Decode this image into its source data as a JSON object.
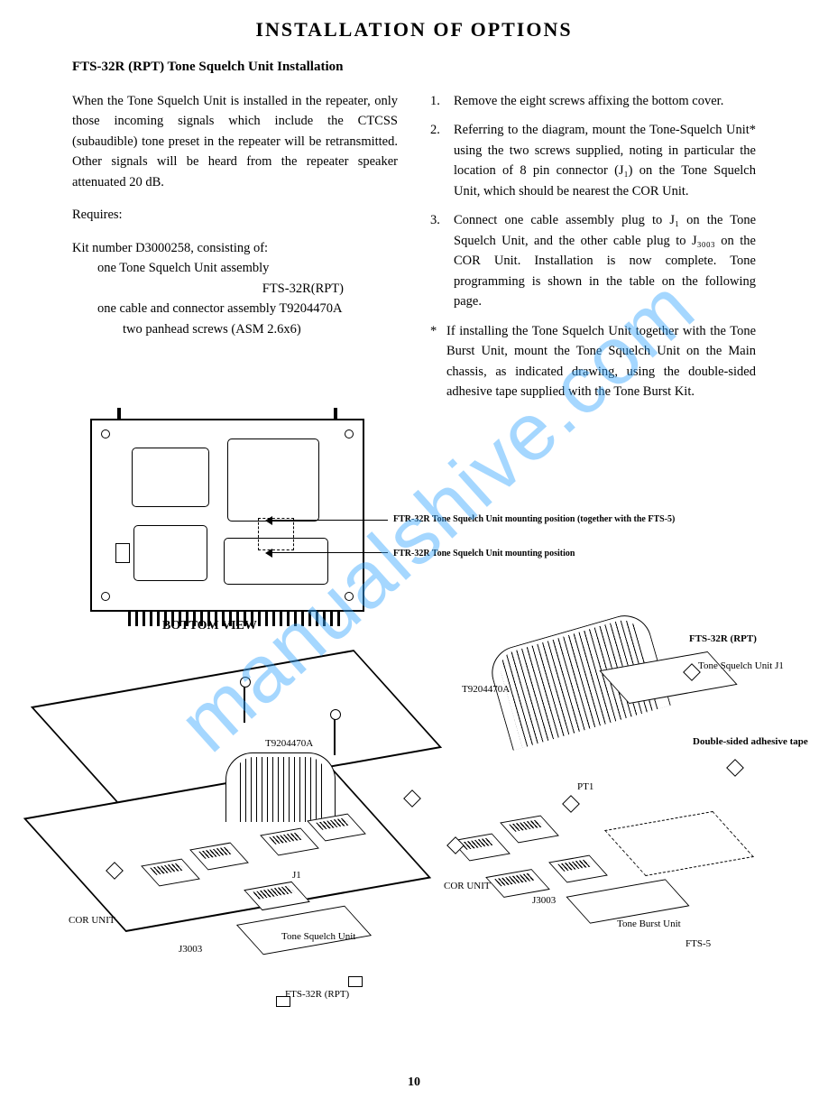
{
  "title": "INSTALLATION OF OPTIONS",
  "subtitle": "FTS-32R (RPT) Tone Squelch Unit Installation",
  "intro_paragraph": "When the Tone Squelch Unit is installed in the repeater, only those incoming signals which include the CTCSS (subaudible) tone preset in the repeater will be retransmitted. Other signals will be heard from the repeater speaker attenuated 20 dB.",
  "requires_label": "Requires:",
  "kit_line": "Kit number D3000258, consisting of:",
  "kit_item1": "one Tone Squelch Unit assembly",
  "kit_item1_model": "FTS-32R(RPT)",
  "kit_item2": "one cable and connector assembly T9204470A",
  "kit_item3": "two panhead screws (ASM 2.6x6)",
  "steps": [
    {
      "num": "1.",
      "text": "Remove the eight screws affixing the bottom cover."
    },
    {
      "num": "2.",
      "text": "Referring to the diagram, mount the Tone-Squelch Unit* using the two screws supplied, noting in particular the location of 8 pin connector (J₁) on the Tone Squelch Unit, which should be nearest the COR Unit."
    },
    {
      "num": "3.",
      "text": "Connect one cable assembly plug to J₁ on the Tone Squelch Unit, and the other cable plug to J₃₀₀₃ on the COR Unit. Installation is now complete. Tone programming is shown in the table on the following page."
    }
  ],
  "footnote_star": "*",
  "footnote_text": "If installing the Tone Squelch Unit together with the Tone Burst Unit, mount the Tone Squelch Unit on the Main chassis, as indicated drawing, using the double-sided adhesive tape supplied with the Tone Burst Kit.",
  "diagram": {
    "bottom_view_label": "BOTTOM VIEW",
    "callout1": "FTR-32R Tone Squelch Unit mounting position (together with the FTS-5)",
    "callout2": "FTR-32R Tone Squelch Unit mounting position",
    "labels": {
      "cor_unit": "COR UNIT",
      "j3003": "J3003",
      "j1": "J1",
      "tone_squelch_unit": "Tone Squelch Unit",
      "fts32_rpt": "FTS-32R (RPT)",
      "t9204470a": "T9204470A",
      "pt1": "PT1",
      "tone_burst_unit": "Tone Burst Unit",
      "fts5": "FTS-5",
      "double_sided_tape": "Double-sided\nadhesive\ntape",
      "tone_squelch_unit_j1": "Tone\nSquelch\nUnit\nJ1"
    }
  },
  "page_number": "10",
  "watermark": "manualshive.com",
  "colors": {
    "text": "#000000",
    "background": "#ffffff",
    "watermark": "#3aa8ff"
  },
  "fonts": {
    "body_family": "serif",
    "title_size_pt": 17,
    "subtitle_size_pt": 11,
    "body_size_pt": 11,
    "diagram_label_size_pt": 8
  }
}
